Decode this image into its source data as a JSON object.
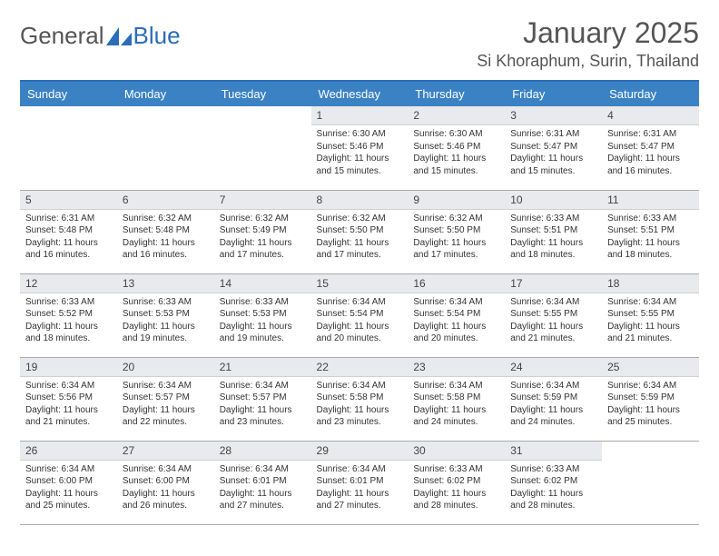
{
  "logo": {
    "text1": "General",
    "text2": "Blue"
  },
  "title": "January 2025",
  "location": "Si Khoraphum, Surin, Thailand",
  "colors": {
    "header_bg": "#3b82c4",
    "header_border": "#2a6db8",
    "daynum_bg": "#e8eaed",
    "text": "#333333",
    "logo_gray": "#555555",
    "logo_blue": "#2a6db8"
  },
  "day_headers": [
    "Sunday",
    "Monday",
    "Tuesday",
    "Wednesday",
    "Thursday",
    "Friday",
    "Saturday"
  ],
  "weeks": [
    [
      {
        "n": "",
        "sr": "",
        "ss": "",
        "dl": ""
      },
      {
        "n": "",
        "sr": "",
        "ss": "",
        "dl": ""
      },
      {
        "n": "",
        "sr": "",
        "ss": "",
        "dl": ""
      },
      {
        "n": "1",
        "sr": "6:30 AM",
        "ss": "5:46 PM",
        "dl": "11 hours and 15 minutes."
      },
      {
        "n": "2",
        "sr": "6:30 AM",
        "ss": "5:46 PM",
        "dl": "11 hours and 15 minutes."
      },
      {
        "n": "3",
        "sr": "6:31 AM",
        "ss": "5:47 PM",
        "dl": "11 hours and 15 minutes."
      },
      {
        "n": "4",
        "sr": "6:31 AM",
        "ss": "5:47 PM",
        "dl": "11 hours and 16 minutes."
      }
    ],
    [
      {
        "n": "5",
        "sr": "6:31 AM",
        "ss": "5:48 PM",
        "dl": "11 hours and 16 minutes."
      },
      {
        "n": "6",
        "sr": "6:32 AM",
        "ss": "5:48 PM",
        "dl": "11 hours and 16 minutes."
      },
      {
        "n": "7",
        "sr": "6:32 AM",
        "ss": "5:49 PM",
        "dl": "11 hours and 17 minutes."
      },
      {
        "n": "8",
        "sr": "6:32 AM",
        "ss": "5:50 PM",
        "dl": "11 hours and 17 minutes."
      },
      {
        "n": "9",
        "sr": "6:32 AM",
        "ss": "5:50 PM",
        "dl": "11 hours and 17 minutes."
      },
      {
        "n": "10",
        "sr": "6:33 AM",
        "ss": "5:51 PM",
        "dl": "11 hours and 18 minutes."
      },
      {
        "n": "11",
        "sr": "6:33 AM",
        "ss": "5:51 PM",
        "dl": "11 hours and 18 minutes."
      }
    ],
    [
      {
        "n": "12",
        "sr": "6:33 AM",
        "ss": "5:52 PM",
        "dl": "11 hours and 18 minutes."
      },
      {
        "n": "13",
        "sr": "6:33 AM",
        "ss": "5:53 PM",
        "dl": "11 hours and 19 minutes."
      },
      {
        "n": "14",
        "sr": "6:33 AM",
        "ss": "5:53 PM",
        "dl": "11 hours and 19 minutes."
      },
      {
        "n": "15",
        "sr": "6:34 AM",
        "ss": "5:54 PM",
        "dl": "11 hours and 20 minutes."
      },
      {
        "n": "16",
        "sr": "6:34 AM",
        "ss": "5:54 PM",
        "dl": "11 hours and 20 minutes."
      },
      {
        "n": "17",
        "sr": "6:34 AM",
        "ss": "5:55 PM",
        "dl": "11 hours and 21 minutes."
      },
      {
        "n": "18",
        "sr": "6:34 AM",
        "ss": "5:55 PM",
        "dl": "11 hours and 21 minutes."
      }
    ],
    [
      {
        "n": "19",
        "sr": "6:34 AM",
        "ss": "5:56 PM",
        "dl": "11 hours and 21 minutes."
      },
      {
        "n": "20",
        "sr": "6:34 AM",
        "ss": "5:57 PM",
        "dl": "11 hours and 22 minutes."
      },
      {
        "n": "21",
        "sr": "6:34 AM",
        "ss": "5:57 PM",
        "dl": "11 hours and 23 minutes."
      },
      {
        "n": "22",
        "sr": "6:34 AM",
        "ss": "5:58 PM",
        "dl": "11 hours and 23 minutes."
      },
      {
        "n": "23",
        "sr": "6:34 AM",
        "ss": "5:58 PM",
        "dl": "11 hours and 24 minutes."
      },
      {
        "n": "24",
        "sr": "6:34 AM",
        "ss": "5:59 PM",
        "dl": "11 hours and 24 minutes."
      },
      {
        "n": "25",
        "sr": "6:34 AM",
        "ss": "5:59 PM",
        "dl": "11 hours and 25 minutes."
      }
    ],
    [
      {
        "n": "26",
        "sr": "6:34 AM",
        "ss": "6:00 PM",
        "dl": "11 hours and 25 minutes."
      },
      {
        "n": "27",
        "sr": "6:34 AM",
        "ss": "6:00 PM",
        "dl": "11 hours and 26 minutes."
      },
      {
        "n": "28",
        "sr": "6:34 AM",
        "ss": "6:01 PM",
        "dl": "11 hours and 27 minutes."
      },
      {
        "n": "29",
        "sr": "6:34 AM",
        "ss": "6:01 PM",
        "dl": "11 hours and 27 minutes."
      },
      {
        "n": "30",
        "sr": "6:33 AM",
        "ss": "6:02 PM",
        "dl": "11 hours and 28 minutes."
      },
      {
        "n": "31",
        "sr": "6:33 AM",
        "ss": "6:02 PM",
        "dl": "11 hours and 28 minutes."
      },
      {
        "n": "",
        "sr": "",
        "ss": "",
        "dl": ""
      }
    ]
  ],
  "labels": {
    "sunrise": "Sunrise:",
    "sunset": "Sunset:",
    "daylight": "Daylight:"
  }
}
